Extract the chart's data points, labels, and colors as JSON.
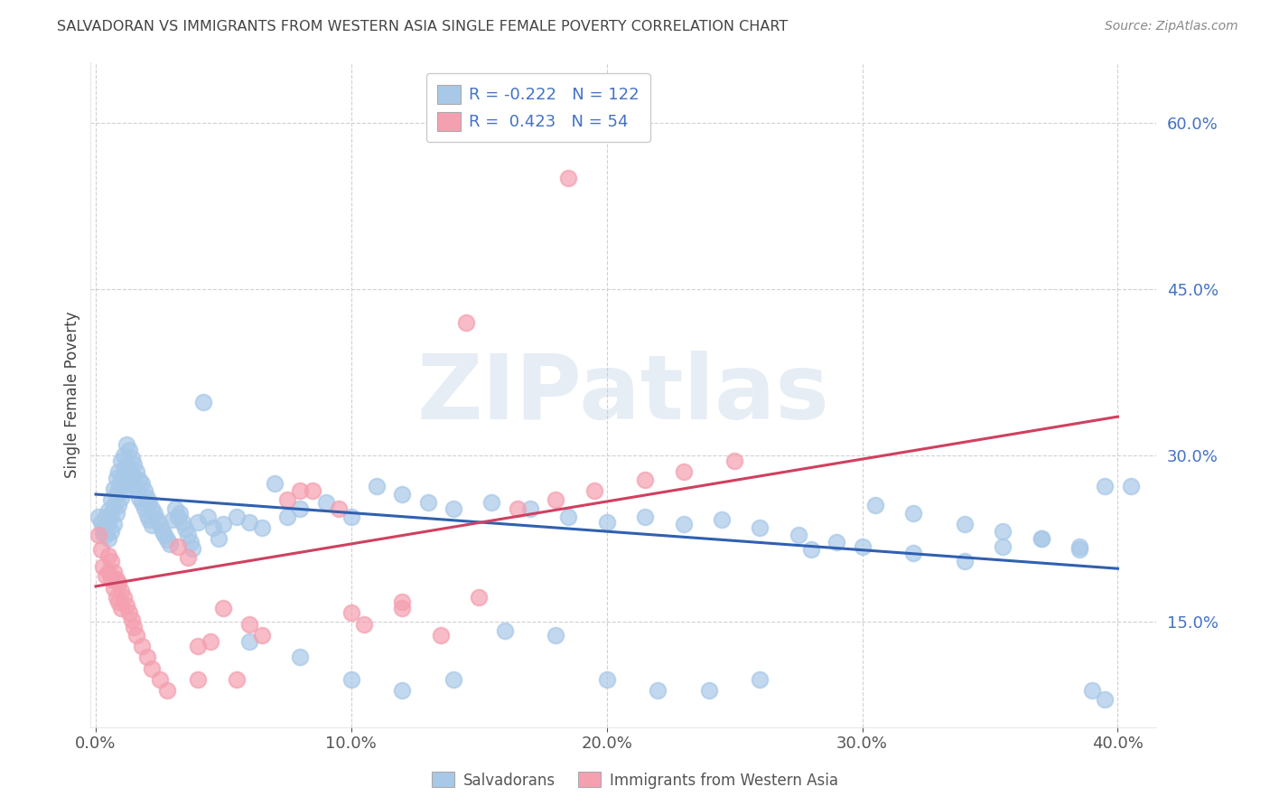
{
  "title": "SALVADORAN VS IMMIGRANTS FROM WESTERN ASIA SINGLE FEMALE POVERTY CORRELATION CHART",
  "source": "Source: ZipAtlas.com",
  "ylabel_label": "Single Female Poverty",
  "xmin": -0.002,
  "xmax": 0.415,
  "ymin": 0.055,
  "ymax": 0.655,
  "blue_R": "-0.222",
  "blue_N": "122",
  "pink_R": "0.423",
  "pink_N": "54",
  "blue_color": "#a8c8e8",
  "pink_color": "#f4a0b0",
  "blue_line_color": "#3060b0",
  "pink_line_color": "#d04060",
  "watermark": "ZIPatlas",
  "legend_label_blue": "Salvadorans",
  "legend_label_pink": "Immigrants from Western Asia",
  "blue_scatter_x": [
    0.001,
    0.002,
    0.003,
    0.003,
    0.004,
    0.004,
    0.005,
    0.005,
    0.005,
    0.006,
    0.006,
    0.006,
    0.007,
    0.007,
    0.007,
    0.008,
    0.008,
    0.008,
    0.009,
    0.009,
    0.009,
    0.01,
    0.01,
    0.01,
    0.011,
    0.011,
    0.011,
    0.012,
    0.012,
    0.012,
    0.013,
    0.013,
    0.014,
    0.014,
    0.015,
    0.015,
    0.016,
    0.016,
    0.017,
    0.017,
    0.018,
    0.018,
    0.019,
    0.019,
    0.02,
    0.02,
    0.021,
    0.021,
    0.022,
    0.022,
    0.023,
    0.024,
    0.025,
    0.026,
    0.027,
    0.028,
    0.029,
    0.03,
    0.031,
    0.032,
    0.033,
    0.034,
    0.035,
    0.036,
    0.037,
    0.038,
    0.04,
    0.042,
    0.044,
    0.046,
    0.048,
    0.05,
    0.055,
    0.06,
    0.065,
    0.07,
    0.075,
    0.08,
    0.09,
    0.1,
    0.11,
    0.12,
    0.13,
    0.14,
    0.155,
    0.17,
    0.185,
    0.2,
    0.215,
    0.23,
    0.245,
    0.26,
    0.275,
    0.29,
    0.305,
    0.32,
    0.34,
    0.355,
    0.37,
    0.385,
    0.39,
    0.395,
    0.06,
    0.08,
    0.1,
    0.12,
    0.14,
    0.16,
    0.18,
    0.2,
    0.22,
    0.24,
    0.26,
    0.28,
    0.3,
    0.32,
    0.34,
    0.355,
    0.37,
    0.385,
    0.395,
    0.405
  ],
  "blue_scatter_y": [
    0.245,
    0.24,
    0.235,
    0.23,
    0.245,
    0.228,
    0.25,
    0.24,
    0.225,
    0.26,
    0.248,
    0.232,
    0.27,
    0.255,
    0.238,
    0.28,
    0.265,
    0.248,
    0.285,
    0.27,
    0.255,
    0.295,
    0.278,
    0.262,
    0.3,
    0.285,
    0.268,
    0.31,
    0.292,
    0.275,
    0.305,
    0.288,
    0.298,
    0.282,
    0.292,
    0.275,
    0.285,
    0.27,
    0.278,
    0.262,
    0.275,
    0.258,
    0.268,
    0.252,
    0.262,
    0.246,
    0.258,
    0.242,
    0.252,
    0.237,
    0.248,
    0.242,
    0.238,
    0.232,
    0.228,
    0.224,
    0.22,
    0.242,
    0.252,
    0.245,
    0.248,
    0.24,
    0.234,
    0.228,
    0.222,
    0.216,
    0.24,
    0.348,
    0.245,
    0.235,
    0.225,
    0.238,
    0.245,
    0.24,
    0.235,
    0.275,
    0.245,
    0.252,
    0.258,
    0.245,
    0.272,
    0.265,
    0.258,
    0.252,
    0.258,
    0.252,
    0.245,
    0.24,
    0.245,
    0.238,
    0.242,
    0.235,
    0.228,
    0.222,
    0.255,
    0.248,
    0.238,
    0.232,
    0.225,
    0.218,
    0.088,
    0.08,
    0.132,
    0.118,
    0.098,
    0.088,
    0.098,
    0.142,
    0.138,
    0.098,
    0.088,
    0.088,
    0.098,
    0.215,
    0.218,
    0.212,
    0.205,
    0.218,
    0.225,
    0.215,
    0.272,
    0.272
  ],
  "pink_scatter_x": [
    0.001,
    0.002,
    0.003,
    0.004,
    0.005,
    0.005,
    0.006,
    0.006,
    0.007,
    0.007,
    0.008,
    0.008,
    0.009,
    0.009,
    0.01,
    0.01,
    0.011,
    0.012,
    0.013,
    0.014,
    0.015,
    0.016,
    0.018,
    0.02,
    0.022,
    0.025,
    0.028,
    0.032,
    0.036,
    0.04,
    0.045,
    0.05,
    0.055,
    0.065,
    0.075,
    0.085,
    0.095,
    0.105,
    0.12,
    0.135,
    0.15,
    0.165,
    0.18,
    0.195,
    0.215,
    0.23,
    0.25,
    0.04,
    0.06,
    0.08,
    0.1,
    0.12,
    0.145,
    0.185
  ],
  "pink_scatter_y": [
    0.228,
    0.215,
    0.2,
    0.192,
    0.21,
    0.195,
    0.205,
    0.188,
    0.195,
    0.18,
    0.188,
    0.172,
    0.185,
    0.168,
    0.178,
    0.162,
    0.172,
    0.165,
    0.158,
    0.152,
    0.145,
    0.138,
    0.128,
    0.118,
    0.108,
    0.098,
    0.088,
    0.218,
    0.208,
    0.128,
    0.132,
    0.162,
    0.098,
    0.138,
    0.26,
    0.268,
    0.252,
    0.148,
    0.162,
    0.138,
    0.172,
    0.252,
    0.26,
    0.268,
    0.278,
    0.285,
    0.295,
    0.098,
    0.148,
    0.268,
    0.158,
    0.168,
    0.42,
    0.55
  ],
  "blue_trendline_x": [
    0.0,
    0.4
  ],
  "blue_trendline_y": [
    0.265,
    0.198
  ],
  "pink_trendline_x": [
    0.0,
    0.4
  ],
  "pink_trendline_y": [
    0.182,
    0.335
  ],
  "background_color": "#ffffff",
  "grid_color": "#cccccc",
  "title_color": "#444444",
  "axis_tick_color": "#4472c4",
  "axis_label_color": "#444444"
}
